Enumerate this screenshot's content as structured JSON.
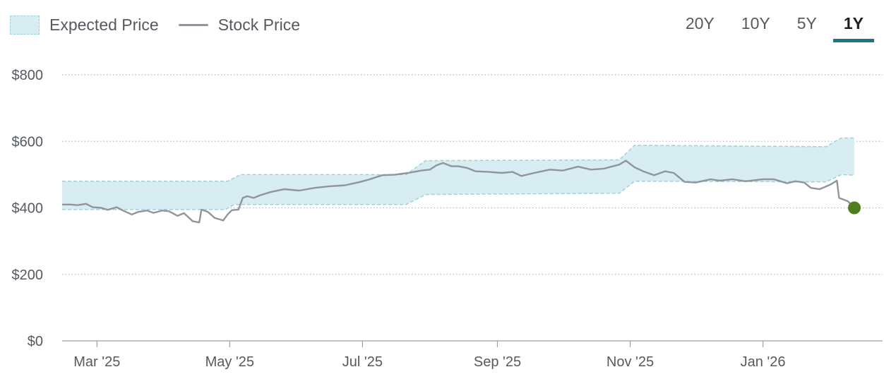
{
  "legend": {
    "expected_label": "Expected Price",
    "stock_label": "Stock Price"
  },
  "ranges": [
    {
      "label": "20Y",
      "active": false
    },
    {
      "label": "10Y",
      "active": false
    },
    {
      "label": "5Y",
      "active": false
    },
    {
      "label": "1Y",
      "active": true
    }
  ],
  "colors": {
    "band_fill": "#d8edf2",
    "band_edge": "#9fd0dc",
    "stock_line": "#8f959b",
    "current_marker": "#4f7f1c",
    "active_tab": "#1b7688",
    "grid": "#b5b9bd",
    "axis": "#9aa0a6"
  },
  "chart_data": {
    "type": "area",
    "title": "",
    "xlabel": "",
    "ylabel": "",
    "x_range": [
      "2025-02-13",
      "2026-02-12"
    ],
    "ylim": [
      0,
      800
    ],
    "y_ticks": [
      {
        "value": 0,
        "label": "$0"
      },
      {
        "value": 200,
        "label": "$200"
      },
      {
        "value": 400,
        "label": "$400"
      },
      {
        "value": 600,
        "label": "$600"
      },
      {
        "value": 800,
        "label": "$800"
      }
    ],
    "x_ticks": [
      {
        "date": "2025-03-01",
        "label": "Mar '25"
      },
      {
        "date": "2025-05-01",
        "label": "May '25"
      },
      {
        "date": "2025-07-01",
        "label": "Jul '25"
      },
      {
        "date": "2025-09-01",
        "label": "Sep '25"
      },
      {
        "date": "2025-11-01",
        "label": "Nov '25"
      },
      {
        "date": "2026-01-01",
        "label": "Jan '26"
      }
    ],
    "grid": "horizontal-dotted",
    "legend_position": "top-left",
    "series": [
      {
        "name": "Expected Price",
        "kind": "band",
        "upper": [
          [
            "2025-02-13",
            480
          ],
          [
            "2025-04-30",
            480
          ],
          [
            "2025-05-06",
            500
          ],
          [
            "2025-07-21",
            500
          ],
          [
            "2025-07-30",
            542
          ],
          [
            "2025-10-27",
            544
          ],
          [
            "2025-11-03",
            588
          ],
          [
            "2026-01-30",
            584
          ],
          [
            "2026-02-06",
            610
          ],
          [
            "2026-02-12",
            610
          ]
        ],
        "lower": [
          [
            "2025-02-13",
            395
          ],
          [
            "2025-04-29",
            395
          ],
          [
            "2025-05-03",
            410
          ],
          [
            "2025-07-21",
            410
          ],
          [
            "2025-07-30",
            440
          ],
          [
            "2025-10-27",
            444
          ],
          [
            "2025-11-03",
            480
          ],
          [
            "2026-01-30",
            478
          ],
          [
            "2026-02-06",
            500
          ],
          [
            "2026-02-12",
            498
          ]
        ]
      },
      {
        "name": "Stock Price",
        "kind": "line",
        "points": [
          [
            "2025-02-13",
            410
          ],
          [
            "2025-02-17",
            410
          ],
          [
            "2025-02-20",
            408
          ],
          [
            "2025-02-24",
            412
          ],
          [
            "2025-02-27",
            402
          ],
          [
            "2025-03-03",
            400
          ],
          [
            "2025-03-06",
            394
          ],
          [
            "2025-03-10",
            402
          ],
          [
            "2025-03-13",
            392
          ],
          [
            "2025-03-17",
            380
          ],
          [
            "2025-03-20",
            388
          ],
          [
            "2025-03-24",
            392
          ],
          [
            "2025-03-27",
            385
          ],
          [
            "2025-03-31",
            392
          ],
          [
            "2025-04-03",
            390
          ],
          [
            "2025-04-07",
            376
          ],
          [
            "2025-04-10",
            384
          ],
          [
            "2025-04-14",
            360
          ],
          [
            "2025-04-17",
            356
          ],
          [
            "2025-04-18",
            395
          ],
          [
            "2025-04-21",
            388
          ],
          [
            "2025-04-24",
            370
          ],
          [
            "2025-04-28",
            362
          ],
          [
            "2025-04-30",
            380
          ],
          [
            "2025-05-02",
            393
          ],
          [
            "2025-05-05",
            395
          ],
          [
            "2025-05-07",
            430
          ],
          [
            "2025-05-09",
            435
          ],
          [
            "2025-05-12",
            430
          ],
          [
            "2025-05-15",
            438
          ],
          [
            "2025-05-20",
            448
          ],
          [
            "2025-05-26",
            456
          ],
          [
            "2025-06-02",
            452
          ],
          [
            "2025-06-09",
            460
          ],
          [
            "2025-06-16",
            465
          ],
          [
            "2025-06-23",
            468
          ],
          [
            "2025-06-30",
            478
          ],
          [
            "2025-07-04",
            485
          ],
          [
            "2025-07-10",
            498
          ],
          [
            "2025-07-16",
            500
          ],
          [
            "2025-07-22",
            505
          ],
          [
            "2025-07-28",
            512
          ],
          [
            "2025-08-01",
            515
          ],
          [
            "2025-08-04",
            528
          ],
          [
            "2025-08-07",
            535
          ],
          [
            "2025-08-11",
            525
          ],
          [
            "2025-08-14",
            525
          ],
          [
            "2025-08-18",
            520
          ],
          [
            "2025-08-22",
            510
          ],
          [
            "2025-08-28",
            508
          ],
          [
            "2025-09-03",
            505
          ],
          [
            "2025-09-08",
            508
          ],
          [
            "2025-09-12",
            496
          ],
          [
            "2025-09-18",
            505
          ],
          [
            "2025-09-25",
            515
          ],
          [
            "2025-10-01",
            512
          ],
          [
            "2025-10-08",
            524
          ],
          [
            "2025-10-14",
            515
          ],
          [
            "2025-10-20",
            518
          ],
          [
            "2025-10-27",
            530
          ],
          [
            "2025-10-30",
            542
          ],
          [
            "2025-11-03",
            522
          ],
          [
            "2025-11-07",
            510
          ],
          [
            "2025-11-12",
            498
          ],
          [
            "2025-11-17",
            510
          ],
          [
            "2025-11-21",
            505
          ],
          [
            "2025-11-26",
            478
          ],
          [
            "2025-12-01",
            476
          ],
          [
            "2025-12-08",
            486
          ],
          [
            "2025-12-12",
            482
          ],
          [
            "2025-12-18",
            486
          ],
          [
            "2025-12-24",
            480
          ],
          [
            "2026-01-01",
            486
          ],
          [
            "2026-01-06",
            486
          ],
          [
            "2026-01-12",
            474
          ],
          [
            "2026-01-16",
            480
          ],
          [
            "2026-01-20",
            476
          ],
          [
            "2026-01-23",
            460
          ],
          [
            "2026-01-27",
            456
          ],
          [
            "2026-02-01",
            470
          ],
          [
            "2026-02-04",
            482
          ],
          [
            "2026-02-05",
            430
          ],
          [
            "2026-02-09",
            420
          ],
          [
            "2026-02-12",
            400
          ]
        ]
      }
    ],
    "current_point": [
      "2026-02-12",
      400
    ]
  }
}
